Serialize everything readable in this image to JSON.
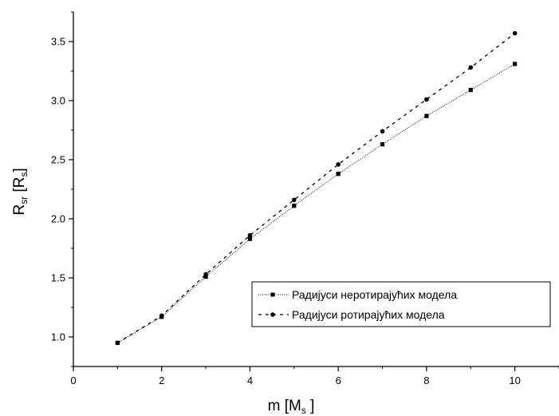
{
  "chart_data": {
    "type": "line",
    "x": [
      1,
      2,
      3,
      4,
      5,
      6,
      7,
      8,
      9,
      10
    ],
    "series": [
      {
        "name": "Радијуси неротирајућих модела",
        "values": [
          0.95,
          1.17,
          1.51,
          1.83,
          2.11,
          2.38,
          2.63,
          2.87,
          3.09,
          3.31
        ],
        "line_style": "dotted-thin",
        "marker": "square"
      },
      {
        "name": "Радијуси ротирајућих модела",
        "values": [
          0.95,
          1.18,
          1.53,
          1.86,
          2.16,
          2.46,
          2.74,
          3.01,
          3.28,
          3.57
        ],
        "line_style": "dashed",
        "marker": "circle"
      }
    ],
    "xlabel": {
      "main": "m [M",
      "sub": "s",
      "end": " ]"
    },
    "ylabel": {
      "main": "R",
      "sub1": "sr",
      "mid": " [R",
      "sub2": "s",
      "end": "]"
    },
    "xlim": [
      0,
      11
    ],
    "ylim": [
      0.75,
      3.75
    ],
    "xticks": [
      0,
      2,
      4,
      6,
      8,
      10
    ],
    "xtick_labels": [
      "0",
      "2",
      "4",
      "6",
      "8",
      "10"
    ],
    "yticks": [
      1.0,
      1.5,
      2.0,
      2.5,
      3.0,
      3.5
    ],
    "ytick_labels": [
      "1.0",
      "1.5",
      "2.0",
      "2.5",
      "3.0",
      "3.5"
    ],
    "grid": false,
    "legend_position": "lower-right",
    "colors": {
      "line": "#000000",
      "background": "#ffffff"
    }
  }
}
